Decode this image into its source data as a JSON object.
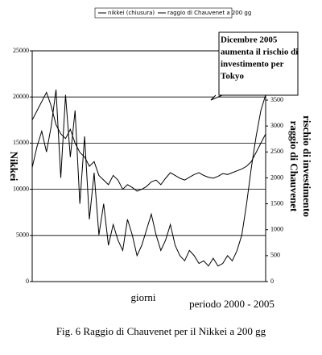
{
  "chart_data": {
    "type": "line",
    "caption": "Fig. 6 Raggio di Chauvenet per il Nikkei a 200 gg",
    "xlabel": "giorni",
    "period_label": "periodo 2000  -  2005",
    "ylabel": "Nikkei",
    "y2label": [
      "raggio di Chauvenet",
      "rischio di investimento"
    ],
    "annotation": [
      "Dicembre 2005",
      "aumenta il rischio di",
      "investimento per",
      "Tokyo"
    ],
    "x": [
      0,
      1,
      2,
      3,
      4,
      5,
      6,
      7,
      8,
      9,
      10,
      11,
      12,
      13,
      14,
      15,
      16,
      17,
      18,
      19,
      20,
      21,
      22,
      23,
      24,
      25,
      26,
      27,
      28,
      29,
      30,
      31,
      32,
      33,
      34,
      35,
      36,
      37,
      38,
      39,
      40,
      41,
      42,
      43,
      44,
      45,
      46,
      47,
      48,
      49
    ],
    "xlim": [
      0,
      49
    ],
    "ylim": [
      0,
      25000
    ],
    "yticks": [
      0,
      5000,
      10000,
      15000,
      20000,
      25000
    ],
    "y2lim": [
      0,
      4450
    ],
    "y2ticks": [
      0,
      500,
      1000,
      1500,
      2000,
      2500,
      3000,
      3500
    ],
    "grid": true,
    "series": [
      {
        "name": "nikkei (chiusura)",
        "color": "#000000",
        "values": [
          17500,
          18500,
          19500,
          20500,
          19000,
          17000,
          16000,
          15500,
          16500,
          15000,
          14000,
          13500,
          12500,
          13000,
          11500,
          11000,
          10500,
          11500,
          11000,
          10000,
          10500,
          10200,
          9800,
          10000,
          10300,
          10800,
          11000,
          10500,
          11200,
          11800,
          11500,
          11200,
          11000,
          11300,
          11600,
          11800,
          11500,
          11300,
          11200,
          11400,
          11700,
          11600,
          11800,
          12000,
          12200,
          12500,
          13000,
          14000,
          15000,
          16000
        ]
      },
      {
        "name": "raggio di Chauvenet a 200 gg",
        "color": "#000000",
        "axis": "y2",
        "values": [
          2200,
          2600,
          2900,
          2500,
          3000,
          3700,
          2000,
          3600,
          2400,
          3300,
          1500,
          2800,
          1200,
          2100,
          900,
          1500,
          700,
          1100,
          800,
          600,
          1200,
          900,
          500,
          700,
          1000,
          1300,
          900,
          600,
          800,
          1100,
          700,
          500,
          400,
          600,
          500,
          350,
          400,
          300,
          450,
          300,
          350,
          500,
          400,
          600,
          900,
          1500,
          2200,
          2800,
          3300,
          3600
        ]
      }
    ]
  }
}
